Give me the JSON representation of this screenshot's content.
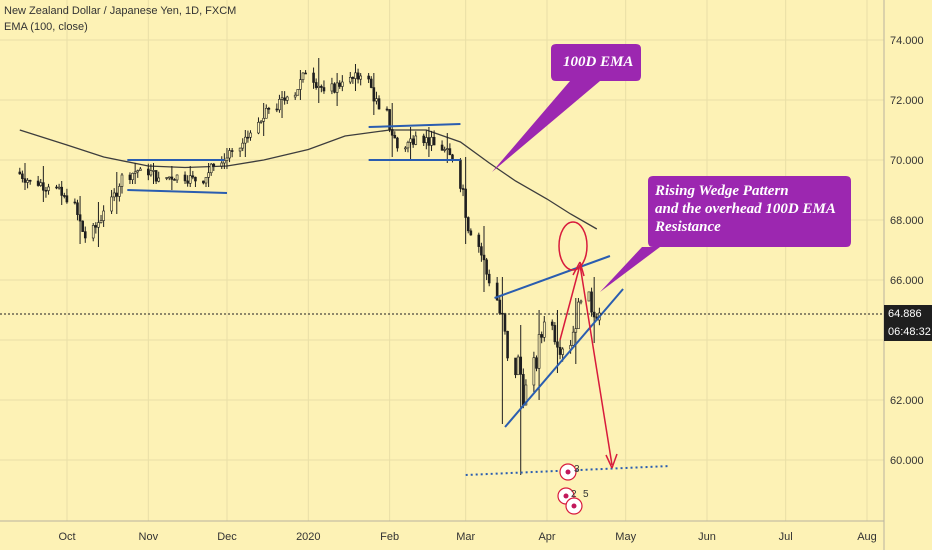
{
  "legend": {
    "symbol": "New Zealand Dollar / Japanese Yen, 1D, FXCM",
    "indicator": "EMA (100, close)"
  },
  "price_axis": {
    "labels": [
      "74.000",
      "72.000",
      "70.000",
      "68.000",
      "66.000",
      "62.000",
      "60.000"
    ],
    "last_price": "64.886",
    "countdown": "06:48:32"
  },
  "time_axis": {
    "labels": [
      "Oct",
      "Nov",
      "Dec",
      "2020",
      "Feb",
      "Mar",
      "Apr",
      "May",
      "Jun",
      "Jul",
      "Aug"
    ]
  },
  "annotations": {
    "ema_callout": "100D EMA",
    "wedge_callout": [
      "Rising Wedge Pattern",
      "and the overhead 100D EMA",
      "Resistance"
    ],
    "event_markers": [
      "3",
      "2",
      "5"
    ]
  },
  "colors": {
    "background": "#fdf2b5",
    "candle": "#1f1f1f",
    "ema": "#3d3d3d",
    "trendline": "#2a5db0",
    "callout": "#9c27b0",
    "arrow": "#d81b3c",
    "support": "#2a5db0"
  },
  "chart_data": {
    "type": "candlestick",
    "title": "New Zealand Dollar / Japanese Yen, 1D, FXCM",
    "ylim": [
      58.8,
      75.6
    ],
    "y_ticks": [
      60,
      62,
      64,
      66,
      68,
      70,
      72,
      74
    ],
    "x_ticks": [
      "Oct",
      "Nov",
      "Dec",
      "2020",
      "Feb",
      "Mar",
      "Apr",
      "May",
      "Jun",
      "Jul",
      "Aug"
    ],
    "last_price": 64.886,
    "series": [
      {
        "name": "EMA (100, close)",
        "points": [
          [
            "2019-09-13",
            71.0
          ],
          [
            "2019-10-01",
            70.5
          ],
          [
            "2019-10-15",
            70.1
          ],
          [
            "2019-11-01",
            69.8
          ],
          [
            "2019-11-15",
            69.75
          ],
          [
            "2019-12-01",
            69.8
          ],
          [
            "2019-12-15",
            70.0
          ],
          [
            "2020-01-01",
            70.35
          ],
          [
            "2020-01-15",
            70.8
          ],
          [
            "2020-02-01",
            71.0
          ],
          [
            "2020-02-15",
            71.0
          ],
          [
            "2020-02-28",
            70.6
          ],
          [
            "2020-03-10",
            69.9
          ],
          [
            "2020-03-20",
            69.3
          ],
          [
            "2020-04-01",
            68.7
          ],
          [
            "2020-04-10",
            68.2
          ],
          [
            "2020-04-20",
            67.7
          ]
        ]
      }
    ],
    "candles_approx": [
      [
        "2019-09-13",
        69.6,
        69.9,
        69.0,
        69.3
      ],
      [
        "2019-09-20",
        69.3,
        69.8,
        68.6,
        69.1
      ],
      [
        "2019-09-27",
        69.1,
        69.3,
        68.5,
        68.6
      ],
      [
        "2019-10-04",
        68.6,
        68.8,
        67.2,
        67.4
      ],
      [
        "2019-10-11",
        67.4,
        68.6,
        67.1,
        68.3
      ],
      [
        "2019-10-18",
        68.3,
        69.6,
        68.2,
        69.5
      ],
      [
        "2019-10-25",
        69.5,
        69.9,
        69.2,
        69.7
      ],
      [
        "2019-11-01",
        69.7,
        69.9,
        69.2,
        69.4
      ],
      [
        "2019-11-08",
        69.4,
        69.8,
        69.0,
        69.5
      ],
      [
        "2019-11-15",
        69.5,
        69.8,
        69.1,
        69.3
      ],
      [
        "2019-11-22",
        69.3,
        69.9,
        69.1,
        69.8
      ],
      [
        "2019-11-29",
        69.8,
        70.4,
        69.7,
        70.3
      ],
      [
        "2019-12-06",
        70.3,
        71.0,
        70.1,
        70.9
      ],
      [
        "2019-12-13",
        70.9,
        71.9,
        70.8,
        71.7
      ],
      [
        "2019-12-20",
        71.7,
        72.3,
        71.4,
        72.1
      ],
      [
        "2019-12-27",
        72.1,
        73.0,
        72.0,
        72.9
      ],
      [
        "2020-01-03",
        72.9,
        73.4,
        71.9,
        72.3
      ],
      [
        "2020-01-10",
        72.3,
        72.9,
        71.8,
        72.6
      ],
      [
        "2020-01-17",
        72.6,
        73.2,
        72.3,
        72.8
      ],
      [
        "2020-01-24",
        72.8,
        72.9,
        71.5,
        71.7
      ],
      [
        "2020-01-31",
        71.7,
        71.9,
        70.1,
        70.4
      ],
      [
        "2020-02-07",
        70.4,
        71.1,
        70.0,
        70.8
      ],
      [
        "2020-02-14",
        70.8,
        71.1,
        70.1,
        70.5
      ],
      [
        "2020-02-21",
        70.5,
        70.9,
        69.9,
        70.0
      ],
      [
        "2020-02-28",
        70.0,
        70.1,
        67.2,
        67.5
      ],
      [
        "2020-03-06",
        67.5,
        67.8,
        65.6,
        65.9
      ],
      [
        "2020-03-13",
        65.9,
        66.1,
        61.2,
        63.4
      ],
      [
        "2020-03-20",
        63.4,
        64.5,
        59.5,
        62.5
      ],
      [
        "2020-03-27",
        62.5,
        65.0,
        62.0,
        64.6
      ],
      [
        "2020-04-03",
        64.6,
        65.0,
        62.9,
        63.7
      ],
      [
        "2020-04-10",
        63.7,
        65.4,
        63.2,
        65.3
      ],
      [
        "2020-04-17",
        65.3,
        66.1,
        63.9,
        64.9
      ]
    ],
    "trendlines": {
      "wedge_upper": [
        [
          "2020-03-12",
          65.4
        ],
        [
          "2020-04-25",
          66.8
        ]
      ],
      "wedge_lower": [
        [
          "2020-03-16",
          61.1
        ],
        [
          "2020-04-30",
          65.7
        ]
      ],
      "range_2019_top": [
        [
          "2019-10-24",
          70.0
        ],
        [
          "2019-11-30",
          70.0
        ]
      ],
      "range_2019_bottom": [
        [
          "2019-10-24",
          69.0
        ],
        [
          "2019-12-01",
          68.9
        ]
      ],
      "range_2020_top": [
        [
          "2020-01-24",
          71.1
        ],
        [
          "2020-02-28",
          71.2
        ]
      ],
      "range_2020_bottom": [
        [
          "2020-01-24",
          70.0
        ],
        [
          "2020-02-28",
          70.0
        ]
      ],
      "support_dotted": [
        [
          "2020-03-01",
          59.5
        ],
        [
          "2020-05-18",
          59.8
        ]
      ]
    }
  }
}
